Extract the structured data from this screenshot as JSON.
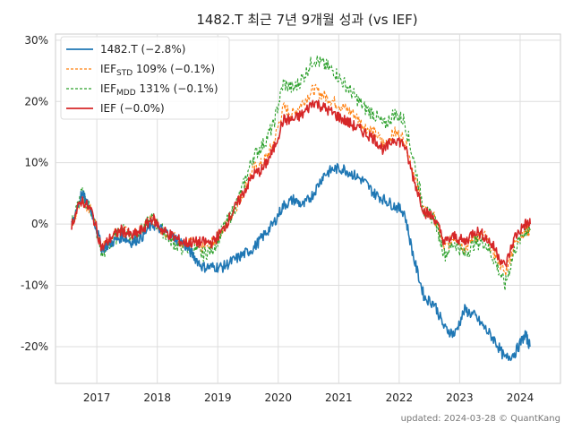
{
  "title": "1482.T 최근 7년 9개월 성과 (vs IEF)",
  "footer": "updated: 2024-03-28 © QuantKang",
  "chart_data": {
    "type": "line",
    "title": "1482.T 최근 7년 9개월 성과 (vs IEF)",
    "xlabel": "",
    "ylabel": "",
    "x_ticks": [
      "2017",
      "2018",
      "2019",
      "2020",
      "2021",
      "2022",
      "2023",
      "2024"
    ],
    "y_ticks": [
      "-20%",
      "-10%",
      "0%",
      "10%",
      "20%",
      "30%"
    ],
    "ylim": [
      -26,
      31
    ],
    "grid": true,
    "legend_position": "top-left",
    "x": [
      "2016-08",
      "2016-10",
      "2016-12",
      "2017-02",
      "2017-04",
      "2017-06",
      "2017-08",
      "2017-10",
      "2017-12",
      "2018-02",
      "2018-04",
      "2018-06",
      "2018-08",
      "2018-10",
      "2018-12",
      "2019-02",
      "2019-04",
      "2019-06",
      "2019-08",
      "2019-10",
      "2019-12",
      "2020-02",
      "2020-04",
      "2020-06",
      "2020-08",
      "2020-10",
      "2020-12",
      "2021-02",
      "2021-04",
      "2021-06",
      "2021-08",
      "2021-10",
      "2021-12",
      "2022-02",
      "2022-04",
      "2022-06",
      "2022-08",
      "2022-10",
      "2022-12",
      "2023-02",
      "2023-04",
      "2023-06",
      "2023-08",
      "2023-10",
      "2023-12",
      "2024-02",
      "2024-03"
    ],
    "series": [
      {
        "name": "1482.T (−2.8%)",
        "color": "#1f77b4",
        "dashed": false,
        "values": [
          0,
          5,
          2,
          -4,
          -3,
          -2,
          -3,
          -2,
          0,
          -1,
          -2,
          -3,
          -5,
          -7,
          -7,
          -7,
          -6,
          -5,
          -4,
          -2,
          0,
          3,
          4,
          3,
          5,
          8,
          9,
          9,
          8,
          7,
          5,
          4,
          3,
          2,
          -6,
          -12,
          -13,
          -17,
          -18,
          -14,
          -15,
          -17,
          -19,
          -22,
          -21,
          -18,
          -20
        ]
      },
      {
        "name": "IEF",
        "sub": "STD",
        "suffix": " 109% (−0.1%)",
        "color": "#ff7f0e",
        "dashed": true,
        "values": [
          0,
          4,
          2,
          -4,
          -2,
          -1,
          -2,
          -1,
          1,
          -1,
          -2,
          -3,
          -3,
          -4,
          -3,
          -1,
          2,
          5,
          9,
          10,
          13,
          19,
          18,
          20,
          22,
          21,
          20,
          19,
          18,
          16,
          15,
          13,
          15,
          14,
          8,
          2,
          1,
          -4,
          -2,
          -4,
          -2,
          -2,
          -5,
          -8,
          -3,
          -1,
          -1
        ]
      },
      {
        "name": "IEF",
        "sub": "MDD",
        "suffix": " 131% (−0.1%)",
        "color": "#2ca02c",
        "dashed": true,
        "values": [
          0,
          5,
          2,
          -5,
          -3,
          -1,
          -2,
          -1,
          1,
          -1,
          -3,
          -4,
          -4,
          -5,
          -4,
          -1,
          2,
          6,
          11,
          13,
          16,
          23,
          22,
          24,
          27,
          26,
          25,
          23,
          21,
          19,
          18,
          16,
          18,
          17,
          10,
          2,
          1,
          -5,
          -3,
          -5,
          -3,
          -3,
          -6,
          -10,
          -4,
          -1,
          -1
        ]
      },
      {
        "name": "IEF (−0.0%)",
        "color": "#d62728",
        "dashed": false,
        "values": [
          0,
          4,
          2,
          -4,
          -2,
          -1,
          -2,
          -1,
          1,
          -1,
          -2,
          -3,
          -3,
          -3,
          -3,
          -1,
          2,
          5,
          8,
          9,
          12,
          17,
          17,
          18,
          20,
          19,
          18,
          17,
          16,
          15,
          14,
          12,
          14,
          13,
          7,
          2,
          1,
          -3,
          -2,
          -3,
          -1,
          -2,
          -4,
          -7,
          -2,
          0,
          0
        ]
      }
    ]
  }
}
